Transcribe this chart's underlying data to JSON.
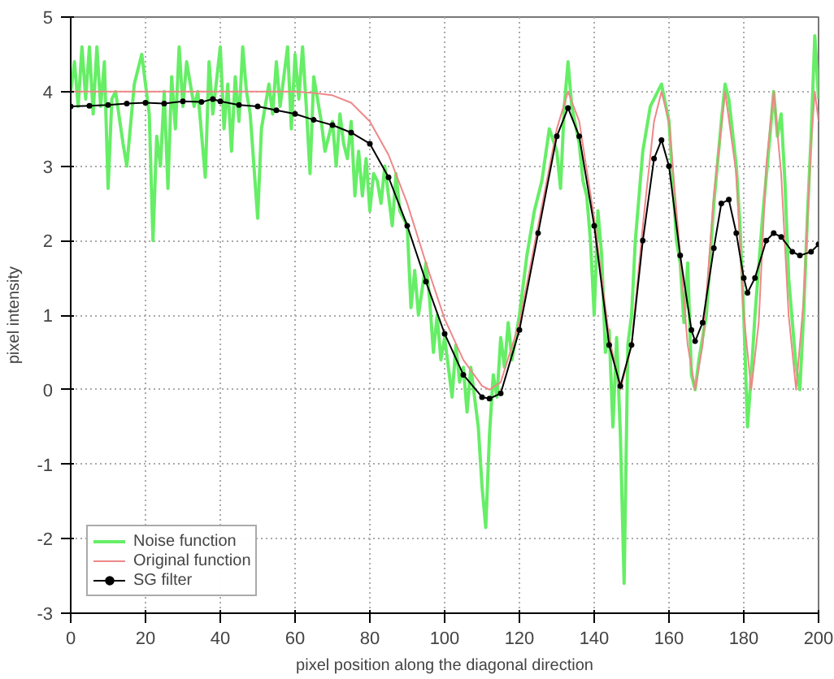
{
  "chart_data": {
    "type": "line",
    "xlabel": "pixel position along the diagonal direction",
    "ylabel": "pixel intensity",
    "xlim": [
      0,
      200
    ],
    "ylim": [
      -3,
      5
    ],
    "xticks": [
      0,
      20,
      40,
      60,
      80,
      100,
      120,
      140,
      160,
      180,
      200
    ],
    "yticks": [
      -3,
      -2,
      -1,
      0,
      1,
      2,
      3,
      4,
      5
    ],
    "grid": true,
    "legend": "bottom left",
    "series": [
      {
        "name": "Noise function",
        "color": "#66ee66",
        "marker": "none",
        "x": [
          0,
          1,
          2,
          3,
          4,
          5,
          6,
          7,
          8,
          9,
          10,
          11,
          12,
          14,
          15,
          17,
          19,
          21,
          22,
          23,
          24,
          25,
          26,
          27,
          28,
          29,
          30,
          31,
          33,
          34,
          36,
          37,
          38,
          40,
          41,
          42,
          43,
          44,
          45,
          46,
          47,
          48,
          50,
          51,
          53,
          54,
          55,
          56,
          58,
          59,
          60,
          61,
          62,
          63,
          64,
          65,
          66,
          67,
          68,
          70,
          71,
          72,
          73,
          74,
          75,
          76,
          77,
          78,
          79,
          80,
          81,
          82,
          83,
          84,
          85,
          86,
          87,
          88,
          90,
          91,
          92,
          93,
          95,
          96,
          97,
          98,
          99,
          100,
          102,
          103,
          104,
          105,
          106,
          107,
          108,
          109,
          110,
          111,
          112,
          113,
          114,
          115,
          116,
          117,
          118,
          120,
          122,
          124,
          126,
          128,
          130,
          131,
          132,
          133,
          134,
          136,
          137,
          138,
          139,
          140,
          141,
          142,
          143,
          144,
          145,
          146,
          147,
          148,
          149,
          150,
          151,
          153,
          155,
          156,
          158,
          160,
          162,
          163,
          164,
          165,
          166,
          167,
          168,
          170,
          172,
          174,
          175,
          176,
          178,
          179,
          180,
          181,
          182,
          183,
          185,
          187,
          188,
          189,
          190,
          191,
          192,
          193,
          194,
          195,
          196,
          197,
          198,
          199,
          200
        ],
        "values": [
          4.0,
          4.4,
          3.8,
          4.6,
          3.9,
          4.6,
          3.7,
          4.6,
          3.8,
          4.4,
          2.7,
          3.9,
          4.0,
          3.3,
          3.0,
          4.1,
          4.5,
          3.7,
          2.0,
          3.4,
          3.0,
          4.0,
          2.7,
          4.2,
          3.5,
          4.6,
          3.8,
          4.4,
          3.8,
          4.0,
          2.85,
          4.4,
          3.7,
          4.6,
          3.5,
          4.1,
          3.2,
          4.2,
          3.6,
          4.6,
          4.0,
          3.7,
          2.3,
          3.5,
          4.1,
          3.7,
          4.4,
          3.8,
          4.6,
          3.5,
          4.5,
          3.9,
          4.6,
          3.8,
          2.9,
          4.2,
          3.9,
          3.6,
          3.2,
          3.6,
          3.0,
          3.7,
          3.3,
          3.1,
          3.6,
          2.6,
          3.2,
          2.6,
          3.1,
          2.4,
          2.9,
          2.8,
          2.5,
          3.0,
          2.6,
          2.2,
          2.9,
          2.4,
          2.2,
          1.1,
          1.6,
          1.0,
          1.7,
          1.2,
          0.5,
          1.0,
          0.4,
          0.7,
          -0.1,
          0.6,
          0.1,
          0.3,
          -0.3,
          0.3,
          -0.1,
          -0.5,
          -1.3,
          -1.85,
          -0.6,
          0.2,
          -0.1,
          0.7,
          0.3,
          0.9,
          0.4,
          1.0,
          1.8,
          2.4,
          2.8,
          3.5,
          3.2,
          2.7,
          3.8,
          4.4,
          3.8,
          3.3,
          2.8,
          2.6,
          2.0,
          1.0,
          2.4,
          1.8,
          0.5,
          0.8,
          -0.5,
          0.7,
          -0.6,
          -2.6,
          0.6,
          1.0,
          2.0,
          3.2,
          3.8,
          3.9,
          4.1,
          3.6,
          2.0,
          1.7,
          0.9,
          1.7,
          0.2,
          0.0,
          0.4,
          1.0,
          2.5,
          3.6,
          4.1,
          3.9,
          3.0,
          2.2,
          1.0,
          -0.5,
          0.2,
          1.0,
          2.3,
          3.4,
          4.0,
          3.4,
          3.7,
          2.8,
          1.5,
          0.9,
          0.3,
          0.0,
          1.0,
          2.3,
          3.4,
          4.75,
          3.9
        ]
      },
      {
        "name": "Original function",
        "color": "#ee8888",
        "marker": "none",
        "x": [
          0,
          20,
          40,
          60,
          65,
          70,
          75,
          80,
          85,
          90,
          95,
          100,
          105,
          110,
          112,
          115,
          120,
          125,
          130,
          133,
          136,
          140,
          144,
          147,
          150,
          153,
          156,
          158,
          160,
          163,
          165,
          167,
          169,
          172,
          175,
          178,
          180,
          182,
          184,
          186,
          188,
          190,
          192,
          194,
          196,
          198,
          199,
          200
        ],
        "values": [
          4,
          4,
          4,
          4,
          3.98,
          3.95,
          3.85,
          3.6,
          3.15,
          2.5,
          1.7,
          0.95,
          0.4,
          0.05,
          0,
          0.1,
          0.9,
          2.2,
          3.5,
          4,
          3.6,
          2.3,
          0.7,
          0,
          0.6,
          2.2,
          3.6,
          4,
          3.6,
          1.8,
          0.6,
          0,
          0.6,
          2.6,
          4,
          2.9,
          1.0,
          0,
          0.9,
          3.0,
          4,
          2.9,
          1.0,
          0,
          1.2,
          3.3,
          4,
          3.6
        ]
      },
      {
        "name": "SG filter",
        "color": "#000000",
        "marker": "circle",
        "x": [
          0,
          5,
          10,
          15,
          20,
          25,
          30,
          35,
          38,
          40,
          45,
          50,
          55,
          60,
          65,
          70,
          75,
          80,
          85,
          90,
          95,
          100,
          105,
          110,
          112,
          115,
          120,
          125,
          130,
          133,
          136,
          140,
          144,
          147,
          150,
          153,
          156,
          158,
          160,
          163,
          166,
          167,
          169,
          172,
          174,
          176,
          178,
          180,
          181,
          183,
          186,
          188,
          190,
          193,
          195,
          198,
          200
        ],
        "values": [
          3.8,
          3.81,
          3.82,
          3.84,
          3.85,
          3.84,
          3.87,
          3.86,
          3.9,
          3.87,
          3.82,
          3.8,
          3.75,
          3.7,
          3.62,
          3.55,
          3.45,
          3.3,
          2.85,
          2.2,
          1.45,
          0.75,
          0.2,
          -0.1,
          -0.12,
          -0.05,
          0.8,
          2.1,
          3.4,
          3.78,
          3.4,
          2.2,
          0.6,
          0.05,
          0.6,
          2.0,
          3.1,
          3.35,
          3.0,
          1.8,
          0.8,
          0.65,
          0.9,
          1.9,
          2.5,
          2.55,
          2.1,
          1.5,
          1.3,
          1.5,
          2.0,
          2.1,
          2.05,
          1.85,
          1.8,
          1.85,
          1.95
        ]
      }
    ]
  }
}
